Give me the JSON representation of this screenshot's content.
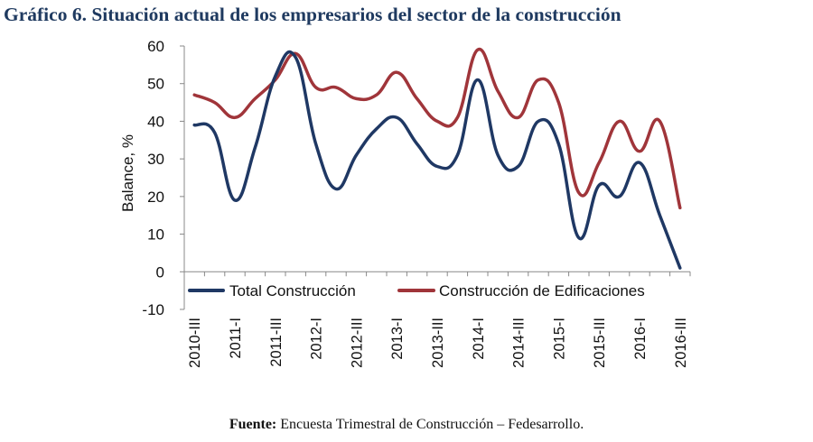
{
  "title": "Gráfico 6. Situación actual de los empresarios del sector de la construcción",
  "source": {
    "label": "Fuente:",
    "text": " Encuesta Trimestral de Construcción – Fedesarrollo."
  },
  "chart_data": {
    "type": "line",
    "ylabel": "Balance, %",
    "xlabel": "",
    "ylim": [
      -10,
      60
    ],
    "yticks": [
      -10,
      0,
      10,
      20,
      30,
      40,
      50,
      60
    ],
    "tick_labels": [
      "2010-III",
      "2011-I",
      "2011-III",
      "2012-I",
      "2012-III",
      "2013-I",
      "2013-III",
      "2014-I",
      "2014-III",
      "2015-I",
      "2015-III",
      "2016-I",
      "2016-III"
    ],
    "x": [
      "2010-III",
      "2010-IV",
      "2011-I",
      "2011-II",
      "2011-III",
      "2011-IV",
      "2012-I",
      "2012-II",
      "2012-III",
      "2012-IV",
      "2013-I",
      "2013-II",
      "2013-III",
      "2013-IV",
      "2014-I",
      "2014-II",
      "2014-III",
      "2014-IV",
      "2015-I",
      "2015-II",
      "2015-III",
      "2015-IV",
      "2016-I",
      "2016-II",
      "2016-III"
    ],
    "grid": false,
    "legend_position": "bottom",
    "series": [
      {
        "name": "Total Construcción",
        "color": "#1f3864",
        "values": [
          39,
          37,
          19,
          33,
          52,
          57,
          34,
          22,
          31,
          38,
          41,
          34,
          28,
          31,
          51,
          31,
          28,
          40,
          34,
          9,
          23,
          20,
          29,
          15,
          1
        ]
      },
      {
        "name": "Construcción de Edificaciones",
        "color": "#a0353a",
        "values": [
          47,
          45,
          41,
          46,
          51,
          58,
          49,
          49,
          46,
          47,
          53,
          46,
          40,
          41,
          59,
          48,
          41,
          51,
          45,
          21,
          29,
          40,
          32,
          40,
          17
        ]
      }
    ]
  }
}
